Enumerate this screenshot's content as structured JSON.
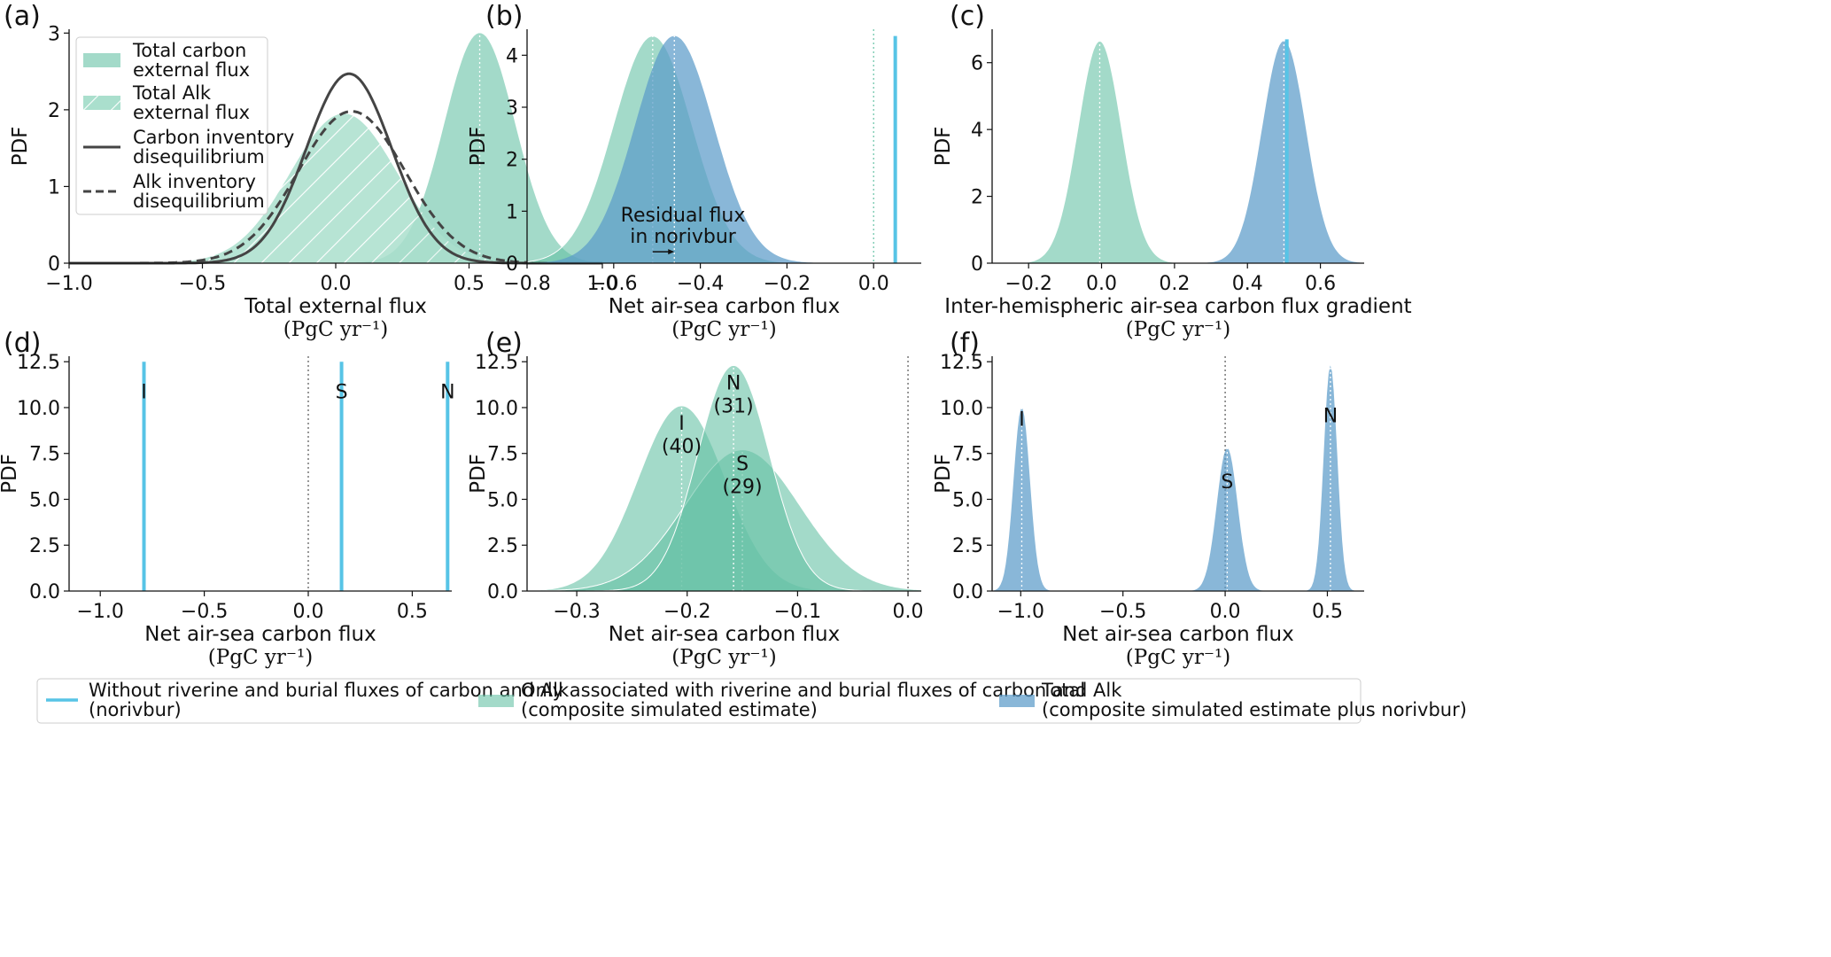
{
  "chart_data": [
    {
      "panel": "(a)",
      "type": "area",
      "xlabel": "Total external flux",
      "unit": "(PgC yr⁻¹)",
      "ylabel": "PDF",
      "xlim": [
        -1.0,
        1.0
      ],
      "ylim": [
        0,
        3.05
      ],
      "xticks": [
        "−1.0",
        "−0.5",
        "0.0",
        "0.5",
        "1.0"
      ],
      "yticks": [
        "0",
        "1",
        "2",
        "3"
      ],
      "series": [
        {
          "name": "Total carbon external flux",
          "kind": "fill",
          "mean": 0.54,
          "sd": 0.133,
          "peak": 3.0
        },
        {
          "name": "Total Alk external flux",
          "kind": "hatch",
          "mean": 0.03,
          "sd": 0.2,
          "peak": 1.95
        },
        {
          "name": "Carbon inventory disequilibrium",
          "kind": "solid",
          "mean": 0.05,
          "sd": 0.16,
          "peak": 2.47
        },
        {
          "name": "Alk inventory disequilibrium",
          "kind": "dashed",
          "mean": 0.06,
          "sd": 0.2,
          "peak": 1.98
        }
      ],
      "legend": [
        "Total carbon external flux",
        "Total Alk external flux",
        "Carbon inventory disequilibrium",
        "Alk inventory disequilibrium"
      ],
      "legend_loc": "top-left"
    },
    {
      "panel": "(b)",
      "type": "area",
      "xlabel": "Net air-sea carbon flux",
      "unit": "(PgC yr⁻¹)",
      "ylabel": "PDF",
      "xlim": [
        -0.8,
        0.11
      ],
      "ylim": [
        0,
        4.5
      ],
      "xticks": [
        "−0.8",
        "−0.6",
        "−0.4",
        "−0.2",
        "0.0"
      ],
      "yticks": [
        "0",
        "1",
        "2",
        "3",
        "4"
      ],
      "series": [
        {
          "name": "Only associated with riverine and burial fluxes of carbon and Alk",
          "kind": "green",
          "mean": -0.51,
          "sd": 0.091,
          "peak": 4.37
        },
        {
          "name": "Total",
          "kind": "blue",
          "mean": -0.46,
          "sd": 0.091,
          "peak": 4.37
        },
        {
          "name": "Without riverine and burial fluxes of carbon and Alk",
          "kind": "vline",
          "x": 0.05,
          "peak": 4.37
        }
      ],
      "annotation": [
        "Residual flux",
        "in norivbur"
      ]
    },
    {
      "panel": "(c)",
      "type": "area",
      "xlabel": "Inter-hemispheric air-sea carbon flux gradient",
      "unit": "(PgC yr⁻¹)",
      "ylabel": "PDF",
      "xlim": [
        -0.3,
        0.72
      ],
      "ylim": [
        0,
        7.0
      ],
      "xticks": [
        "−0.2",
        "0.0",
        "0.2",
        "0.4",
        "0.6"
      ],
      "yticks": [
        "0",
        "2",
        "4",
        "6"
      ],
      "series": [
        {
          "name": "Only associated with riverine and burial fluxes of carbon and Alk",
          "kind": "green",
          "mean": -0.005,
          "sd": 0.06,
          "peak": 6.65
        },
        {
          "name": "Total",
          "kind": "blue",
          "mean": 0.5,
          "sd": 0.06,
          "peak": 6.65
        },
        {
          "name": "Without riverine and burial fluxes of carbon and Alk",
          "kind": "vline",
          "x": 0.508,
          "peak": 6.7
        }
      ]
    },
    {
      "panel": "(d)",
      "type": "line",
      "xlabel": "Net air-sea carbon flux",
      "unit": "(PgC yr⁻¹)",
      "ylabel": "PDF",
      "xlim": [
        -1.15,
        0.69
      ],
      "ylim": [
        0,
        12.8
      ],
      "xticks": [
        "−1.0",
        "−0.5",
        "0.0",
        "0.5"
      ],
      "yticks": [
        "0.0",
        "2.5",
        "5.0",
        "7.5",
        "10.0",
        "12.5"
      ],
      "series": [
        {
          "name": "I",
          "kind": "vline",
          "x": -0.79,
          "peak": 12.5
        },
        {
          "name": "S",
          "kind": "vline",
          "x": 0.16,
          "peak": 12.5
        },
        {
          "name": "N",
          "kind": "vline",
          "x": 0.67,
          "peak": 12.5
        }
      ],
      "labels": [
        {
          "text": "I",
          "x": -0.79,
          "y": 10.5
        },
        {
          "text": "S",
          "x": 0.16,
          "y": 10.5
        },
        {
          "text": "N",
          "x": 0.67,
          "y": 10.5
        }
      ]
    },
    {
      "panel": "(e)",
      "type": "area",
      "xlabel": "Net air-sea carbon flux",
      "unit": "(PgC yr⁻¹)",
      "ylabel": "PDF",
      "xlim": [
        -0.345,
        0.012
      ],
      "ylim": [
        0,
        12.8
      ],
      "xticks": [
        "−0.3",
        "−0.2",
        "−0.1",
        "0.0"
      ],
      "yticks": [
        "0.0",
        "2.5",
        "5.0",
        "7.5",
        "10.0",
        "12.5"
      ],
      "series": [
        {
          "name": "I",
          "kind": "green",
          "mean": -0.205,
          "sd": 0.0395,
          "peak": 10.1
        },
        {
          "name": "S",
          "kind": "green",
          "mean": -0.15,
          "sd": 0.052,
          "peak": 7.7
        },
        {
          "name": "N",
          "kind": "green",
          "mean": -0.158,
          "sd": 0.0325,
          "peak": 12.3
        }
      ],
      "labels": [
        {
          "text": "I",
          "sub": "(40)",
          "x": -0.205,
          "y": 8.8
        },
        {
          "text": "N",
          "sub": "(31)",
          "x": -0.158,
          "y": 11.0
        },
        {
          "text": "S",
          "sub": "(29)",
          "x": -0.15,
          "y": 6.6
        }
      ]
    },
    {
      "panel": "(f)",
      "type": "area",
      "xlabel": "Net air-sea carbon flux",
      "unit": "(PgC yr⁻¹)",
      "ylabel": "PDF",
      "xlim": [
        -1.14,
        0.68
      ],
      "ylim": [
        0,
        12.8
      ],
      "xticks": [
        "−1.0",
        "−0.5",
        "0.0",
        "0.5"
      ],
      "yticks": [
        "0.0",
        "2.5",
        "5.0",
        "7.5",
        "10.0",
        "12.5"
      ],
      "series": [
        {
          "name": "I",
          "kind": "blue",
          "mean": -0.995,
          "sd": 0.04,
          "peak": 10.0
        },
        {
          "name": "S",
          "kind": "blue",
          "mean": 0.01,
          "sd": 0.051,
          "peak": 7.8
        },
        {
          "name": "N",
          "kind": "blue",
          "mean": 0.515,
          "sd": 0.033,
          "peak": 12.3
        }
      ],
      "labels": [
        {
          "text": "I",
          "x": -0.995,
          "y": 9.0
        },
        {
          "text": "S",
          "x": 0.01,
          "y": 5.6
        },
        {
          "text": "N",
          "x": 0.515,
          "y": 9.2
        }
      ]
    }
  ],
  "legend": [
    {
      "kind": "line",
      "label1": "Without riverine and burial fluxes of carbon and Alk",
      "label2": "(norivbur)"
    },
    {
      "kind": "green",
      "label1": "Only associated with riverine and burial fluxes of carbon and Alk",
      "label2": "(composite simulated estimate)"
    },
    {
      "kind": "blue",
      "label1": "Total",
      "label2": "(composite simulated estimate plus norivbur)"
    }
  ],
  "colors": {
    "green": "#66c2a5",
    "blue": "#5b9bc9",
    "line": "#57c4e6",
    "dark": "#444444"
  }
}
